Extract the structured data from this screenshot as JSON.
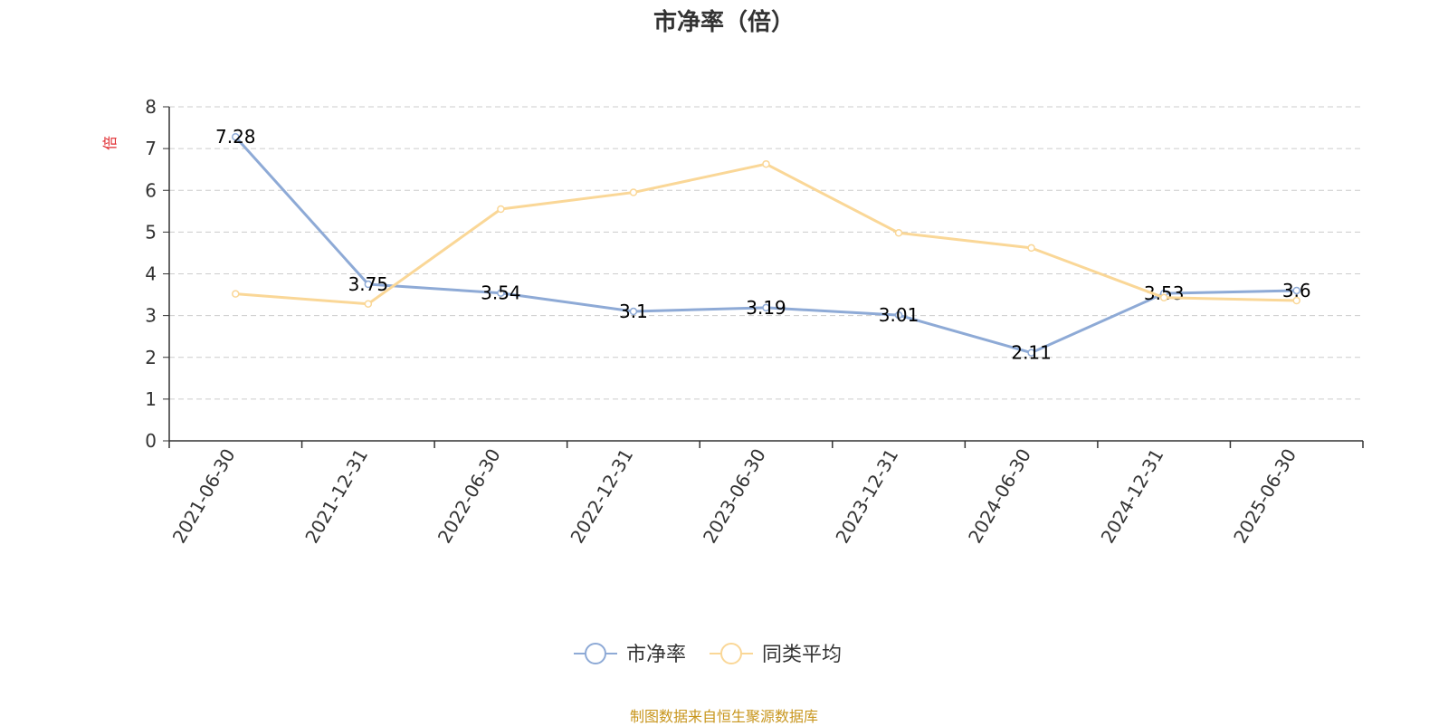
{
  "chart_data": {
    "type": "line",
    "title": "市净率（倍）",
    "ylabel": "倍",
    "ylim": [
      0,
      8
    ],
    "yticks": [
      0,
      1,
      2,
      3,
      4,
      5,
      6,
      7,
      8
    ],
    "grid": true,
    "legend_position": "bottom-center",
    "categories": [
      "2021-06-30",
      "2021-12-31",
      "2022-06-30",
      "2022-12-31",
      "2023-06-30",
      "2023-12-31",
      "2024-06-30",
      "2024-12-31",
      "2025-06-30"
    ],
    "series": [
      {
        "name": "市净率",
        "color": "#8eaad6",
        "values": [
          7.28,
          3.75,
          3.54,
          3.1,
          3.19,
          3.01,
          2.11,
          3.53,
          3.6
        ],
        "labels": [
          "7.28",
          "3.75",
          "3.54",
          "3.1",
          "3.19",
          "3.01",
          "2.11",
          "3.53",
          "3.6"
        ]
      },
      {
        "name": "同类平均",
        "color": "#fad797",
        "values": [
          3.52,
          3.28,
          5.55,
          5.95,
          6.63,
          4.98,
          4.62,
          3.43,
          3.36
        ]
      }
    ]
  },
  "source_text": "制图数据来自恒生聚源数据库",
  "colors": {
    "source": "#c8961e",
    "unit": "#e0292e",
    "axis": "#333333",
    "grid": "#cccccc"
  }
}
